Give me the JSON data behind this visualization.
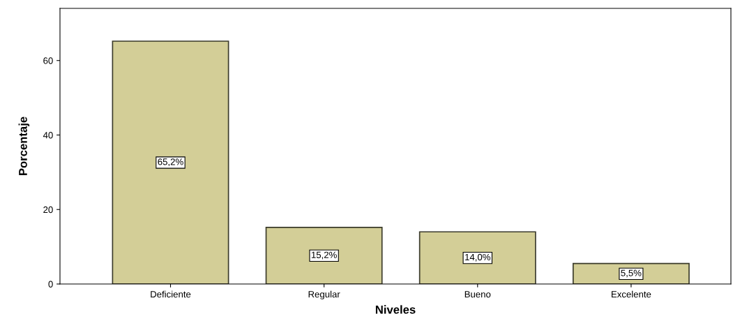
{
  "chart_data": {
    "type": "bar",
    "xlabel": "Niveles",
    "ylabel": "Porcentaje",
    "categories": [
      "Deficiente",
      "Regular",
      "Bueno",
      "Excelente"
    ],
    "values": [
      65.2,
      15.2,
      14.0,
      5.5
    ],
    "value_labels": [
      "65,2%",
      "15,2%",
      "14,0%",
      "5,5%"
    ],
    "color": "#d3ce97",
    "ylim": [
      0,
      74
    ],
    "yticks": [
      0,
      20,
      40,
      60
    ],
    "grid": false,
    "legend": false
  }
}
